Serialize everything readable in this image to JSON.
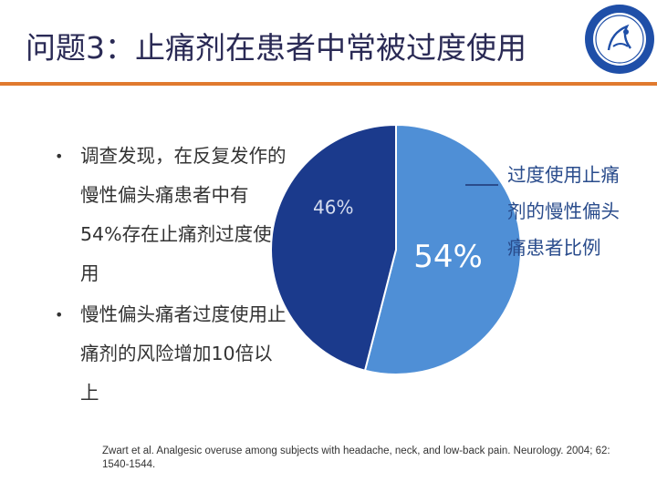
{
  "slide": {
    "title": "问题3：止痛剂在患者中常被过度使用"
  },
  "bullets": [
    {
      "text": "调查发现，在反复发作的慢性偏头痛患者中有54%存在止痛剂过度使用"
    },
    {
      "text": "慢性偏头痛者过度使用止痛剂的风险增加10倍以上"
    }
  ],
  "citation": "Zwart et al. Analgesic overuse among subjects with headache, neck, and low-back pain. Neurology. 2004; 62: 1540-1544.",
  "colors": {
    "accent_rule": "#e07a2e",
    "slice_large": "#4f8fd6",
    "slice_small": "#1b3a8c",
    "legend_text": "#2a4c8c"
  },
  "logo": {
    "icon": "hospital-seal-icon"
  },
  "chart_data": {
    "type": "pie",
    "title": "",
    "slices": [
      {
        "label": "过度使用止痛剂的慢性偏头痛患者比例",
        "value": 54,
        "display": "54%",
        "color": "#4f8fd6"
      },
      {
        "label": "",
        "value": 46,
        "display": "46%",
        "color": "#1b3a8c"
      }
    ],
    "legend": {
      "placement": "right",
      "text": "过度使用止痛剂的慢性偏头痛患者比例"
    }
  }
}
